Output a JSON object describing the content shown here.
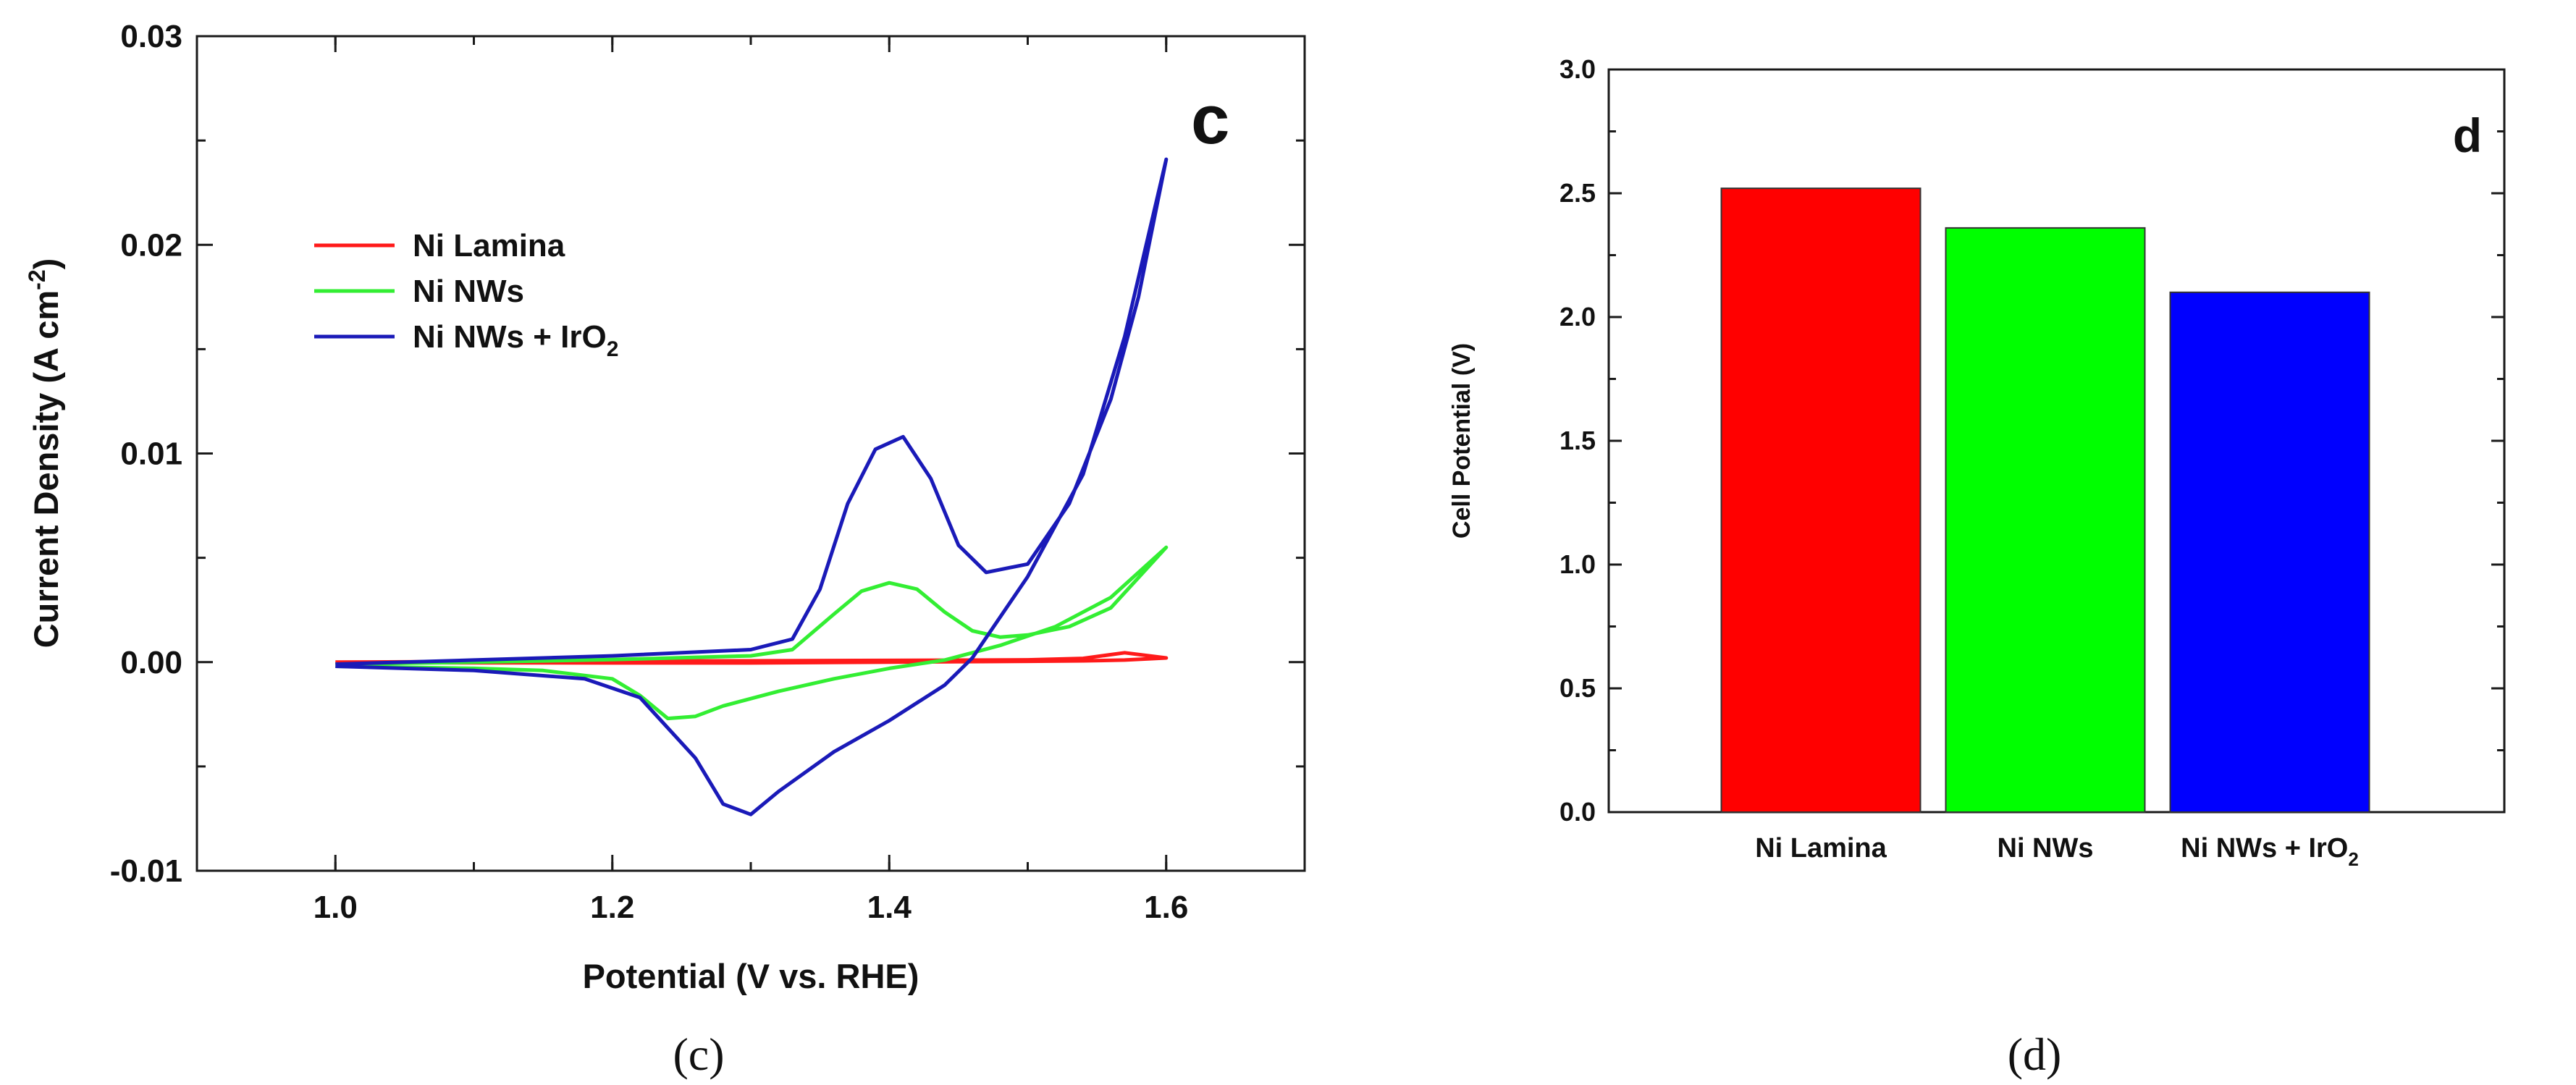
{
  "chart_data": [
    {
      "type": "line",
      "panel_letter": "c",
      "caption": "(c)",
      "xlabel": "Potential (V vs. RHE)",
      "ylabel_main": "Current Density (A cm",
      "ylabel_sup": "-2",
      "ylabel_end": ")",
      "xlim": [
        0.9,
        1.7
      ],
      "ylim": [
        -0.01,
        0.03
      ],
      "xticks": [
        1.0,
        1.2,
        1.4,
        1.6
      ],
      "xtick_labels": [
        "1.0",
        "1.2",
        "1.4",
        "1.6"
      ],
      "yticks": [
        -0.01,
        0.0,
        0.01,
        0.02,
        0.03
      ],
      "ytick_labels": [
        "-0.01",
        "0.00",
        "0.01",
        "0.02",
        "0.03"
      ],
      "legend_position": "upper-left",
      "series": [
        {
          "name": "Ni Lamina",
          "legend_label": "Ni Lamina",
          "color": "#ff1a1a",
          "x": [
            1.0,
            1.1,
            1.2,
            1.3,
            1.4,
            1.5,
            1.54,
            1.57,
            1.6,
            1.57,
            1.54,
            1.5,
            1.4,
            1.3,
            1.2,
            1.1,
            1.0
          ],
          "y": [
            0.0,
            3e-05,
            5e-05,
            6e-05,
            8e-05,
            0.00011,
            0.00018,
            0.00045,
            0.0002,
            0.0001,
            6e-05,
            4e-05,
            0.0,
            -4e-05,
            -4e-05,
            -3e-05,
            -2e-05
          ]
        },
        {
          "name": "Ni NWs",
          "legend_label": "Ni NWs",
          "color": "#33ee33",
          "x": [
            1.0,
            1.1,
            1.2,
            1.3,
            1.33,
            1.36,
            1.38,
            1.4,
            1.42,
            1.44,
            1.46,
            1.48,
            1.5,
            1.53,
            1.56,
            1.6,
            1.56,
            1.52,
            1.48,
            1.44,
            1.4,
            1.36,
            1.32,
            1.28,
            1.26,
            1.24,
            1.22,
            1.2,
            1.15,
            1.1,
            1.0
          ],
          "y": [
            -0.0001,
            0.0,
            0.00012,
            0.0003,
            0.0006,
            0.0023,
            0.0034,
            0.0038,
            0.0035,
            0.0024,
            0.0015,
            0.0012,
            0.0013,
            0.0017,
            0.0026,
            0.0055,
            0.0031,
            0.0017,
            0.0008,
            0.0001,
            -0.0003,
            -0.0008,
            -0.0014,
            -0.0021,
            -0.0026,
            -0.0027,
            -0.0016,
            -0.0008,
            -0.0004,
            -0.0003,
            -0.0002
          ]
        },
        {
          "name": "Ni NWs + IrO2",
          "legend_label": "Ni NWs + IrO",
          "legend_sub": "2",
          "color": "#1a1ab8",
          "x": [
            1.0,
            1.1,
            1.2,
            1.3,
            1.33,
            1.35,
            1.37,
            1.39,
            1.41,
            1.43,
            1.45,
            1.47,
            1.5,
            1.53,
            1.56,
            1.58,
            1.6,
            1.57,
            1.54,
            1.5,
            1.46,
            1.44,
            1.4,
            1.36,
            1.32,
            1.3,
            1.28,
            1.26,
            1.22,
            1.18,
            1.1,
            1.0
          ],
          "y": [
            -0.0001,
            0.0001,
            0.0003,
            0.0006,
            0.0011,
            0.0035,
            0.0076,
            0.0102,
            0.0108,
            0.0088,
            0.0056,
            0.0043,
            0.0047,
            0.0076,
            0.0126,
            0.0175,
            0.0241,
            0.0156,
            0.009,
            0.0041,
            0.0002,
            -0.0011,
            -0.0028,
            -0.0043,
            -0.0062,
            -0.0073,
            -0.0068,
            -0.0046,
            -0.0017,
            -0.0008,
            -0.0004,
            -0.0002
          ]
        }
      ]
    },
    {
      "type": "bar",
      "panel_letter": "d",
      "caption": "(d)",
      "xlabel": "",
      "ylabel": "Cell Potential (V)",
      "ylim": [
        0.0,
        3.0
      ],
      "yticks": [
        0.0,
        0.5,
        1.0,
        1.5,
        2.0,
        2.5,
        3.0
      ],
      "ytick_labels": [
        "0.0",
        "0.5",
        "1.0",
        "1.5",
        "2.0",
        "2.5",
        "3.0"
      ],
      "categories": [
        "Ni Lamina",
        "Ni NWs",
        "Ni NWs + IrO2"
      ],
      "category_labels": [
        {
          "main": "Ni Lamina",
          "sub": ""
        },
        {
          "main": "Ni NWs",
          "sub": ""
        },
        {
          "main": "Ni NWs + IrO",
          "sub": "2"
        }
      ],
      "values": [
        2.52,
        2.36,
        2.1
      ],
      "colors": [
        "#ff0000",
        "#00ff00",
        "#0000ff"
      ]
    }
  ]
}
